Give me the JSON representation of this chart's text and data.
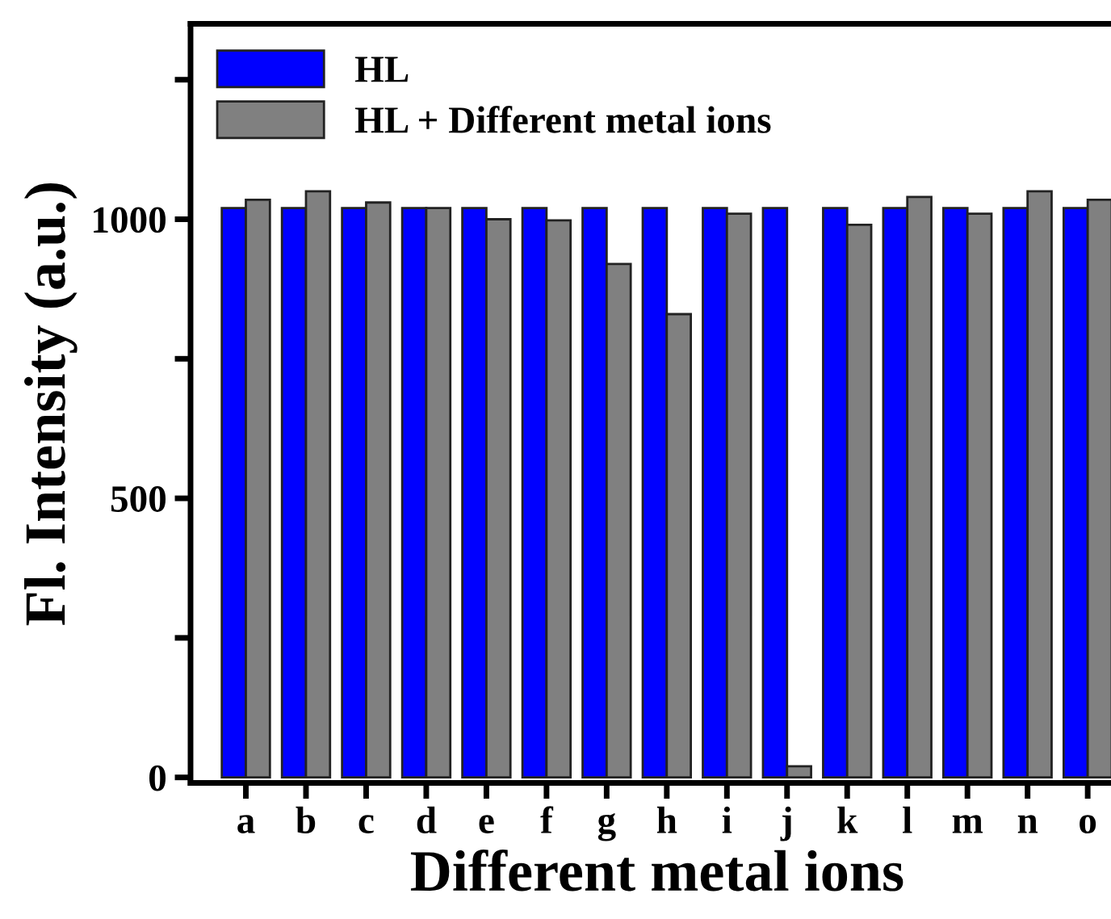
{
  "chart_data": {
    "type": "bar",
    "xlabel": "Different metal ions",
    "ylabel": "Fl. Intensity (a.u.)",
    "categories": [
      "a",
      "b",
      "c",
      "d",
      "e",
      "f",
      "g",
      "h",
      "i",
      "j",
      "k",
      "l",
      "m",
      "n",
      "o"
    ],
    "series": [
      {
        "name": "HL",
        "color": "#0000ff",
        "values": [
          1020,
          1020,
          1020,
          1020,
          1020,
          1020,
          1020,
          1020,
          1020,
          1020,
          1020,
          1020,
          1020,
          1020,
          1020
        ]
      },
      {
        "name": "HL + Different metal ions",
        "color": "#808080",
        "values": [
          1035,
          1050,
          1030,
          1020,
          1000,
          998,
          920,
          830,
          1010,
          20,
          990,
          1040,
          1010,
          1050,
          1035
        ]
      }
    ],
    "ylim": [
      -10,
      1350
    ],
    "yticks": [
      0,
      {
        "value": 250,
        "label": null
      },
      500,
      {
        "value": 750,
        "label": null
      },
      1000,
      {
        "value": 1250,
        "label": null
      }
    ],
    "grid": false,
    "legend": "top left"
  }
}
